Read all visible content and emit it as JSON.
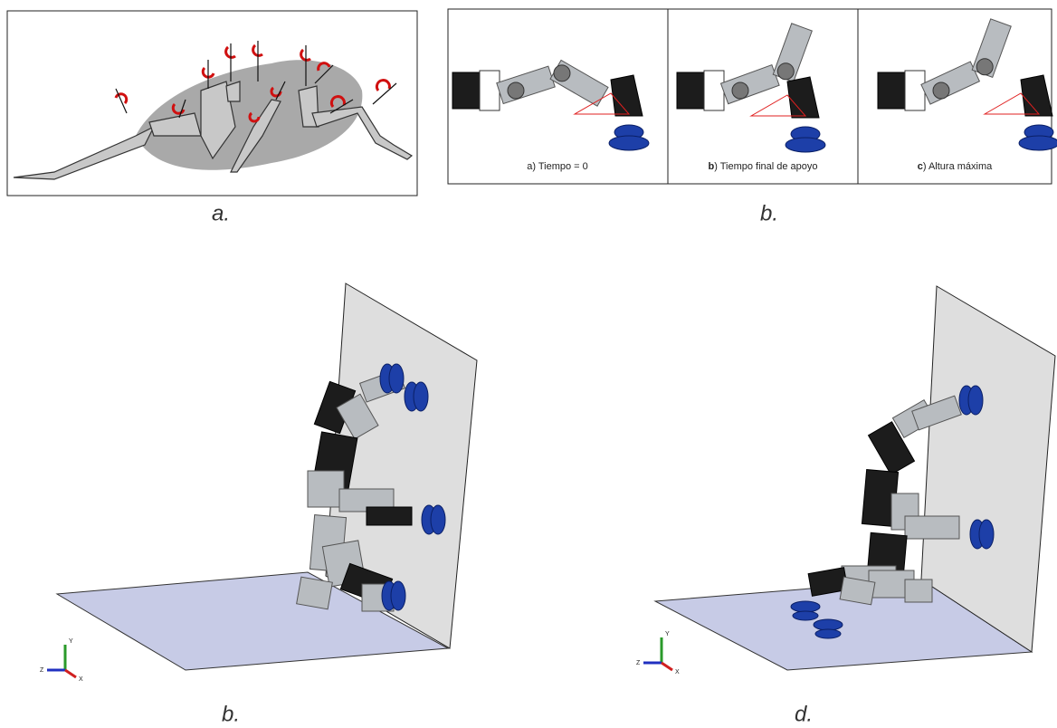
{
  "panels": [
    {
      "caption": "a."
    },
    {
      "caption": "b.",
      "frames": [
        {
          "letter": "a",
          "rest": ") Tiempo = 0"
        },
        {
          "letter": "b",
          "rest": ") Tiempo final de apoyo"
        },
        {
          "letter": "c",
          "rest": ") Altura máxima"
        }
      ]
    },
    {
      "caption": "b.",
      "axes": [
        "Y",
        "Z",
        "X"
      ]
    },
    {
      "caption": "d.",
      "axes": [
        "Y",
        "Z",
        "X"
      ]
    }
  ]
}
